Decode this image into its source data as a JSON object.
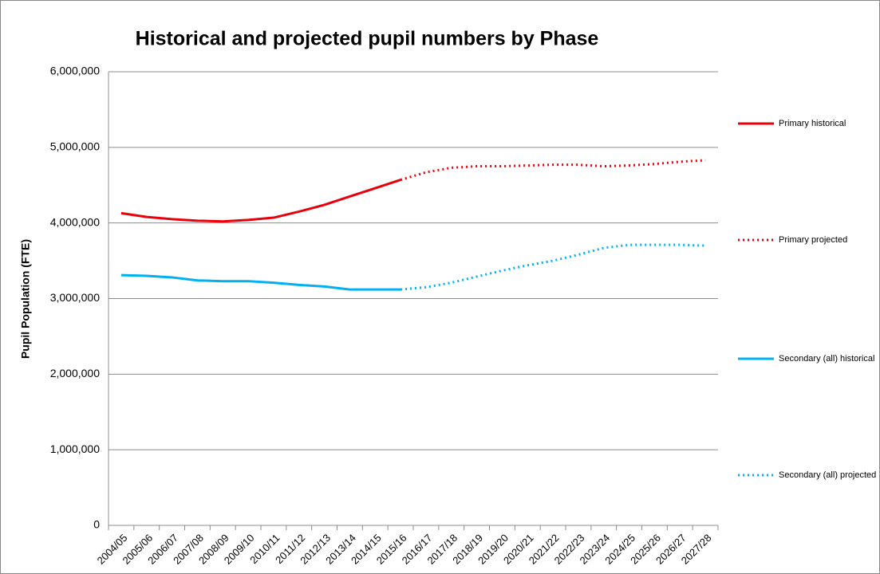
{
  "chart_data": {
    "type": "line",
    "title": "Historical and projected pupil numbers by Phase",
    "y_label": "Pupil Population (FTE)",
    "categories": [
      "2004/05",
      "2005/06",
      "2006/07",
      "2007/08",
      "2008/09",
      "2009/10",
      "2010/11",
      "2011/12",
      "2012/13",
      "2013/14",
      "2014/15",
      "2015/16",
      "2016/17",
      "2017/18",
      "2018/19",
      "2019/20",
      "2020/21",
      "2021/22",
      "2022/23",
      "2023/24",
      "2024/25",
      "2025/26",
      "2026/27",
      "2027/28"
    ],
    "series": [
      {
        "name": "Primary historical",
        "color": "#e8000b",
        "dash": "solid",
        "values": [
          4130000,
          4080000,
          4050000,
          4030000,
          4020000,
          4040000,
          4070000,
          4150000,
          4240000,
          4350000,
          4460000,
          4570000,
          null,
          null,
          null,
          null,
          null,
          null,
          null,
          null,
          null,
          null,
          null,
          null
        ]
      },
      {
        "name": "Primary projected",
        "color": "#e8000b",
        "dash": "dotted",
        "values": [
          null,
          null,
          null,
          null,
          null,
          null,
          null,
          null,
          null,
          null,
          null,
          4570000,
          4670000,
          4730000,
          4750000,
          4750000,
          4760000,
          4770000,
          4770000,
          4750000,
          4760000,
          4780000,
          4810000,
          4830000
        ]
      },
      {
        "name": "Secondary (all) historical",
        "color": "#00b0f0",
        "dash": "solid",
        "values": [
          3310000,
          3300000,
          3280000,
          3240000,
          3230000,
          3230000,
          3210000,
          3180000,
          3160000,
          3120000,
          3120000,
          3120000,
          null,
          null,
          null,
          null,
          null,
          null,
          null,
          null,
          null,
          null,
          null,
          null
        ]
      },
      {
        "name": "Secondary (all) projected",
        "color": "#00b0f0",
        "dash": "dotted",
        "values": [
          null,
          null,
          null,
          null,
          null,
          null,
          null,
          null,
          null,
          null,
          null,
          3120000,
          3150000,
          3210000,
          3290000,
          3370000,
          3440000,
          3500000,
          3580000,
          3670000,
          3710000,
          3710000,
          3710000,
          3700000
        ]
      }
    ],
    "ylim": [
      0,
      6000000
    ],
    "yticks": [
      0,
      {
        "value": 1000000,
        "label": "1,000,000"
      },
      {
        "value": 2000000,
        "label": "2,000,000"
      },
      {
        "value": 3000000,
        "label": "3,000,000"
      },
      {
        "value": 4000000,
        "label": "4,000,000"
      },
      {
        "value": 5000000,
        "label": "5,000,000"
      },
      {
        "value": 6000000,
        "label": "6,000,000"
      }
    ],
    "grid": true,
    "legend": "right"
  }
}
